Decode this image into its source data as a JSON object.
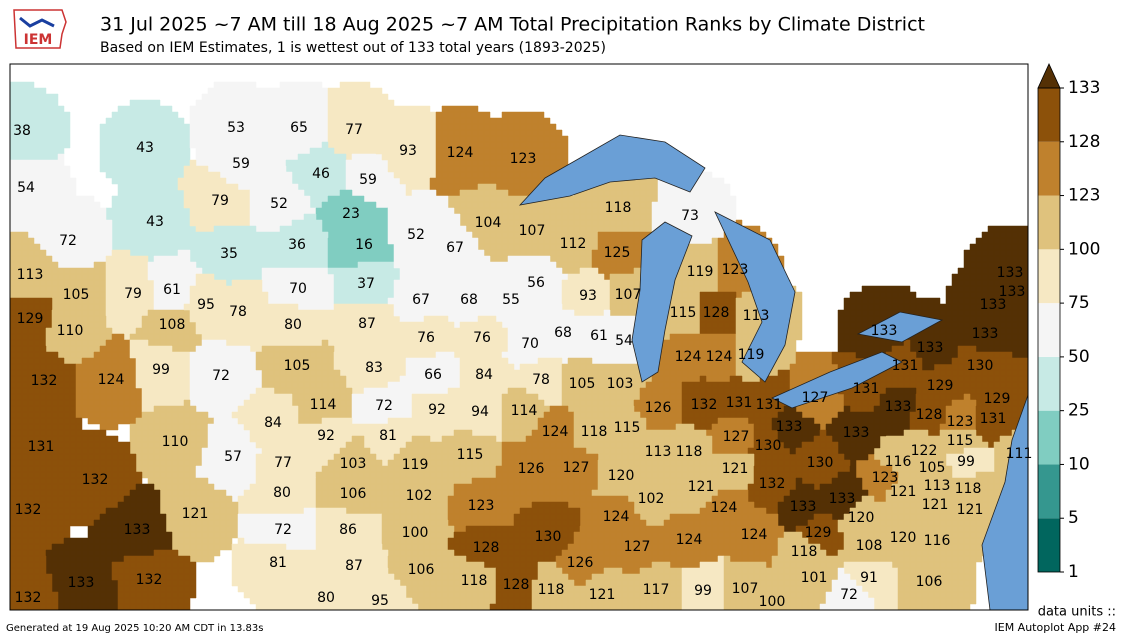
{
  "header": {
    "logo": "IEM",
    "title": "31 Jul 2025 ~7 AM till 18 Aug 2025 ~7 AM Total Precipitation Ranks by Climate District",
    "subtitle": "Based on IEM Estimates, 1 is wettest out of 133 total years (1893-2025)"
  },
  "map": {
    "ranks": [
      38,
      43,
      54,
      43,
      72,
      53,
      65,
      77,
      59,
      46,
      59,
      79,
      52,
      23,
      35,
      36,
      16,
      70,
      37,
      93,
      124,
      123,
      104,
      52,
      67,
      107,
      112,
      118,
      125,
      73,
      113,
      105,
      79,
      61,
      129,
      110,
      108,
      95,
      78,
      80,
      87,
      67,
      68,
      55,
      56,
      93,
      107,
      119,
      123,
      115,
      128,
      113,
      132,
      124,
      99,
      72,
      105,
      83,
      76,
      76,
      70,
      68,
      61,
      54,
      124,
      124,
      119,
      66,
      84,
      78,
      105,
      103,
      114,
      72,
      92,
      94,
      114,
      126,
      132,
      131,
      131,
      127,
      131,
      129,
      129,
      133,
      133,
      133,
      133,
      133,
      133,
      131,
      130,
      133,
      128,
      123,
      131,
      115,
      111,
      122,
      99,
      105,
      116,
      123,
      118,
      113,
      121,
      121,
      121,
      131,
      110,
      57,
      84,
      92,
      81,
      124,
      118,
      115,
      127,
      130,
      133,
      133,
      77,
      103,
      119,
      115,
      126,
      127,
      120,
      113,
      118,
      121,
      130,
      132,
      80,
      106,
      102,
      121,
      123,
      102,
      121,
      132,
      133,
      133,
      129,
      120,
      132,
      133,
      72,
      86,
      100,
      124,
      124,
      124,
      128,
      130,
      127,
      124,
      108,
      120,
      116,
      118,
      133,
      132,
      81,
      87,
      106,
      126,
      101,
      91,
      106,
      132,
      80,
      95,
      118,
      128,
      118,
      121,
      117,
      99,
      107,
      100,
      72
    ]
  },
  "colorbar": {
    "boundaries": [
      1,
      5,
      10,
      25,
      50,
      75,
      100,
      123,
      128,
      133
    ],
    "colors": [
      "#01665e",
      "#35978f",
      "#80cdc1",
      "#c7eae5",
      "#f5f5f5",
      "#f6e8c3",
      "#dfc27d",
      "#bf812d",
      "#8c510a",
      "#543005"
    ],
    "extend": "max"
  },
  "footer": {
    "generated": "Generated at 19 Aug 2025 10:20 AM CDT in 13.83s",
    "units": "data units ::",
    "app": "IEM Autoplot App #24"
  }
}
